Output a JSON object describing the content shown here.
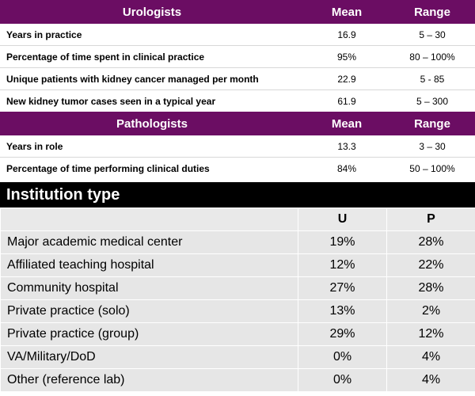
{
  "urologists": {
    "header": {
      "title": "Urologists",
      "mean": "Mean",
      "range": "Range"
    },
    "rows": [
      {
        "label": "Years in practice",
        "mean": "16.9",
        "range": "5 – 30"
      },
      {
        "label": "Percentage of time spent in clinical practice",
        "mean": "95%",
        "range": "80 – 100%"
      },
      {
        "label": "Unique patients with kidney cancer managed per month",
        "mean": "22.9",
        "range": "5 - 85"
      },
      {
        "label": "New kidney tumor cases seen in a typical year",
        "mean": "61.9",
        "range": "5 – 300"
      }
    ]
  },
  "pathologists": {
    "header": {
      "title": "Pathologists",
      "mean": "Mean",
      "range": "Range"
    },
    "rows": [
      {
        "label": "Years in role",
        "mean": "13.3",
        "range": "3 – 30"
      },
      {
        "label": "Percentage of time performing clinical duties",
        "mean": "84%",
        "range": "50 – 100%"
      }
    ]
  },
  "institution": {
    "title": "Institution type",
    "col_u": "U",
    "col_p": "P",
    "rows": [
      {
        "label": "Major academic medical center",
        "u": "19%",
        "p": "28%"
      },
      {
        "label": "Affiliated teaching hospital",
        "u": "12%",
        "p": "22%"
      },
      {
        "label": "Community hospital",
        "u": "27%",
        "p": "28%"
      },
      {
        "label": "Private practice (solo)",
        "u": "13%",
        "p": "2%"
      },
      {
        "label": "Private practice (group)",
        "u": "29%",
        "p": "12%"
      },
      {
        "label": "VA/Military/DoD",
        "u": "0%",
        "p": "4%"
      },
      {
        "label": "Other (reference lab)",
        "u": "0%",
        "p": "4%"
      }
    ]
  },
  "colors": {
    "header_purple": "#6b0d63",
    "header_black": "#000000",
    "cell_gray": "#e6e6e6"
  }
}
